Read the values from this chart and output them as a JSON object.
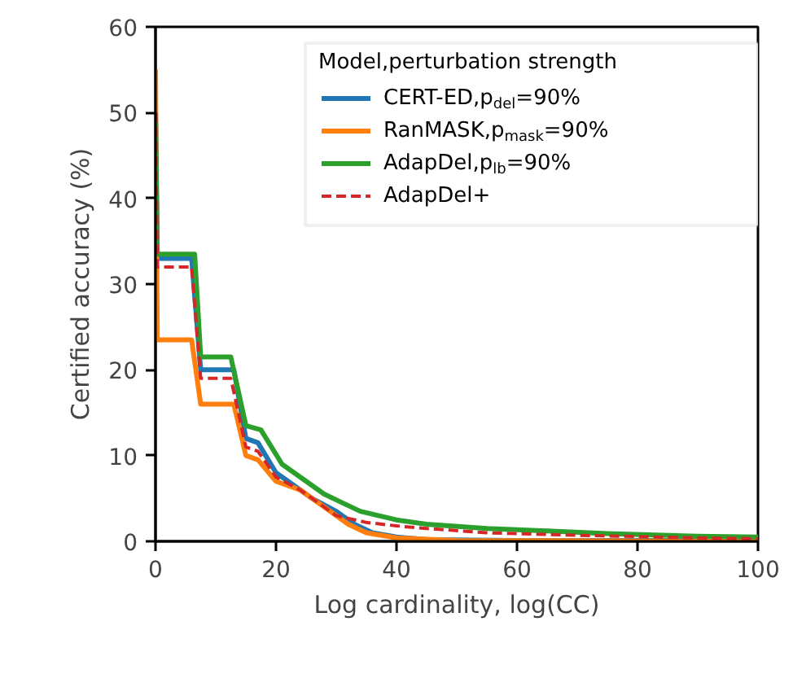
{
  "chart_data": {
    "type": "line",
    "xlabel": "Log cardinality, log(CC)",
    "ylabel": "Certified accuracy (%)",
    "legend_title": "Model,perturbation strength",
    "legend": "top right",
    "grid": false,
    "xlim": [
      0,
      100
    ],
    "ylim": [
      0,
      60
    ],
    "xticks": [
      0,
      20,
      40,
      60,
      80,
      100
    ],
    "yticks": [
      0,
      10,
      20,
      30,
      40,
      50,
      60
    ],
    "series": [
      {
        "name": "CERT-ED,p$_{del}$=90%",
        "color": "#1f77b4",
        "line_style": "solid",
        "x": [
          0,
          0.3,
          6,
          7.5,
          13,
          15,
          17,
          20,
          23,
          26,
          30,
          33,
          36,
          40,
          45,
          60,
          100
        ],
        "values": [
          50,
          33,
          33,
          20,
          20,
          12,
          11.5,
          8,
          6.5,
          5,
          3.5,
          2,
          1,
          0.5,
          0.2,
          0.1,
          0.1
        ]
      },
      {
        "name": "RanMASK,p$_{mask}$=90%",
        "color": "#ff7f0e",
        "line_style": "solid",
        "x": [
          0,
          0.3,
          6,
          7.5,
          13,
          15,
          17,
          20,
          24,
          28,
          32,
          35,
          40,
          50,
          100
        ],
        "values": [
          55,
          23.5,
          23.5,
          16,
          16,
          10,
          9.5,
          7,
          6,
          4,
          2,
          1,
          0.4,
          0.1,
          0
        ]
      },
      {
        "name": "AdapDel,p$_{lb}$=90%",
        "color": "#2ca02c",
        "line_style": "solid",
        "x": [
          0,
          0.3,
          6.5,
          7.5,
          12.5,
          15,
          17.5,
          21,
          25,
          28,
          31,
          34,
          37,
          40,
          45,
          55,
          65,
          75,
          90,
          100
        ],
        "values": [
          50,
          33.5,
          33.5,
          21.5,
          21.5,
          13.5,
          13,
          9,
          7,
          5.5,
          4.5,
          3.5,
          3,
          2.5,
          2,
          1.5,
          1.2,
          0.9,
          0.6,
          0.5
        ]
      },
      {
        "name": "AdapDel+",
        "color": "#d62728",
        "line_style": "dashed",
        "x": [
          0,
          0.3,
          6,
          7.5,
          12.5,
          15,
          17,
          20,
          24,
          27,
          30,
          35,
          40,
          45,
          55,
          70,
          90,
          100
        ],
        "values": [
          50,
          32,
          32,
          19,
          19,
          11,
          10.5,
          7.5,
          6,
          4.5,
          3,
          2.2,
          1.8,
          1.5,
          1,
          0.7,
          0.4,
          0.3
        ]
      }
    ]
  }
}
